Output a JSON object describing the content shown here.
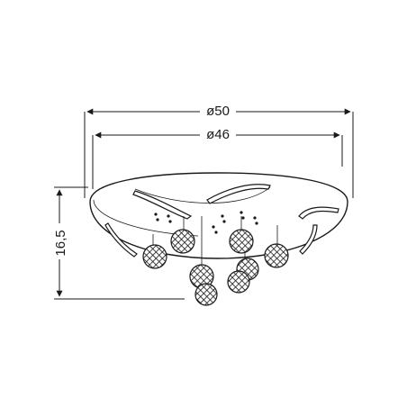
{
  "dimensions": {
    "outer_diameter": "ø50",
    "inner_diameter": "ø46",
    "height": "16,5"
  },
  "colors": {
    "line": "#1a1a1a",
    "crystal": "#2b2b2b",
    "canopy_fill": "#ffffff"
  },
  "pendant_count": 8
}
